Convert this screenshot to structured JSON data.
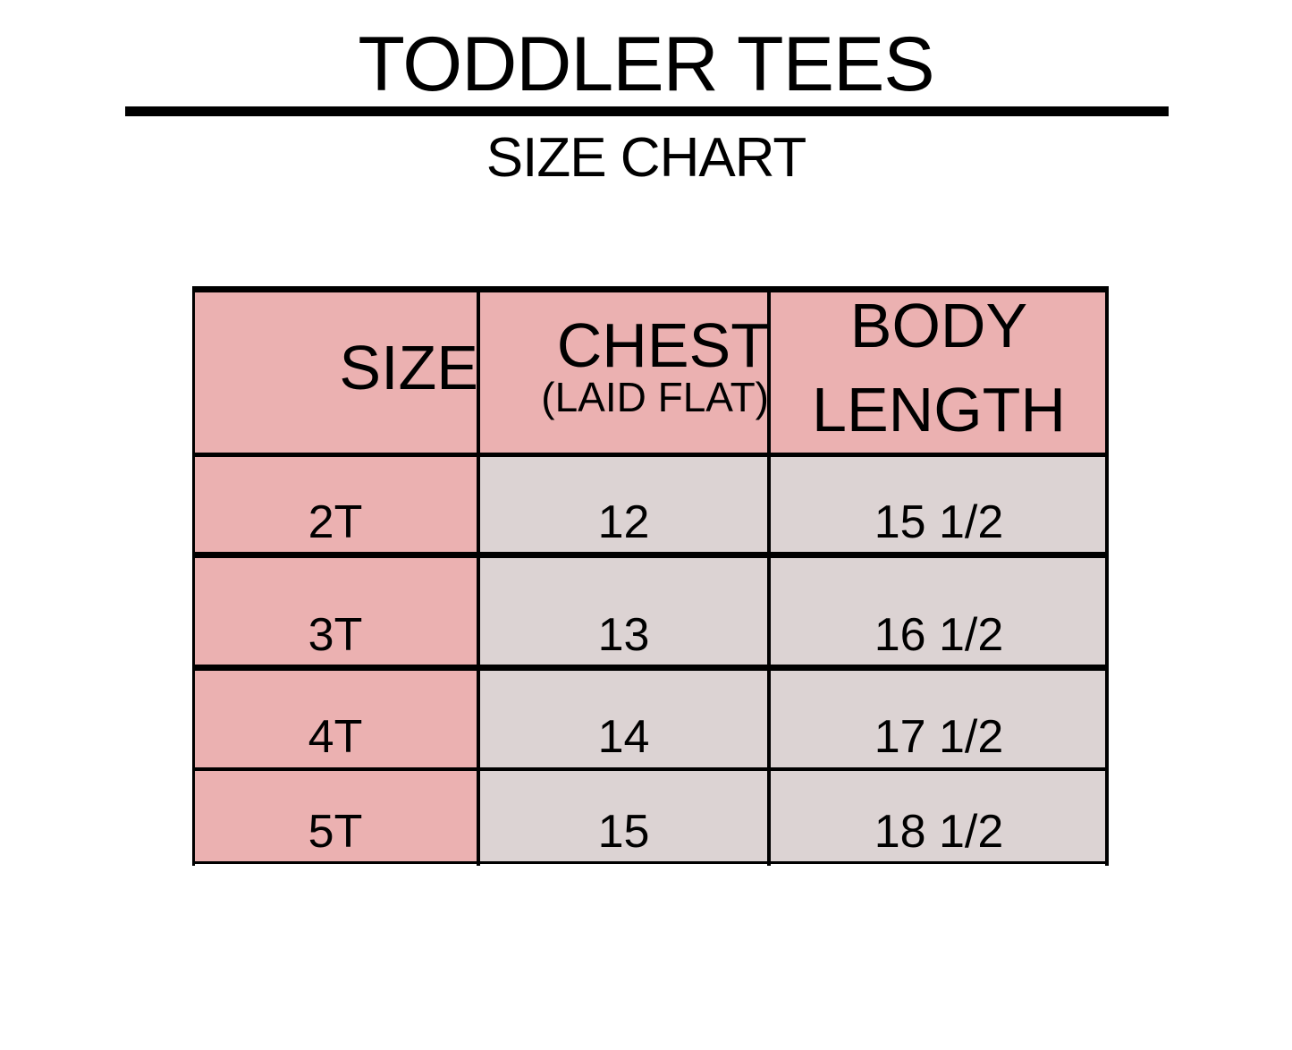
{
  "title": "TODDLER TEES",
  "subtitle": "SIZE CHART",
  "colors": {
    "header": "#ebb1b1",
    "size_column": "#ebb1b1",
    "value_cells": "#dcd3d3",
    "lines": "#000000"
  },
  "table": {
    "headers": [
      {
        "main": "SIZE",
        "sub": ""
      },
      {
        "main": "CHEST",
        "sub": "(LAID FLAT)"
      },
      {
        "main": "BODY LENGTH",
        "sub": ""
      }
    ],
    "rows": [
      {
        "size": "2T",
        "chest": "12",
        "length": "15 1/2"
      },
      {
        "size": "3T",
        "chest": "13",
        "length": "16 1/2"
      },
      {
        "size": "4T",
        "chest": "14",
        "length": "17 1/2"
      },
      {
        "size": "5T",
        "chest": "15",
        "length": "18 1/2"
      }
    ]
  }
}
